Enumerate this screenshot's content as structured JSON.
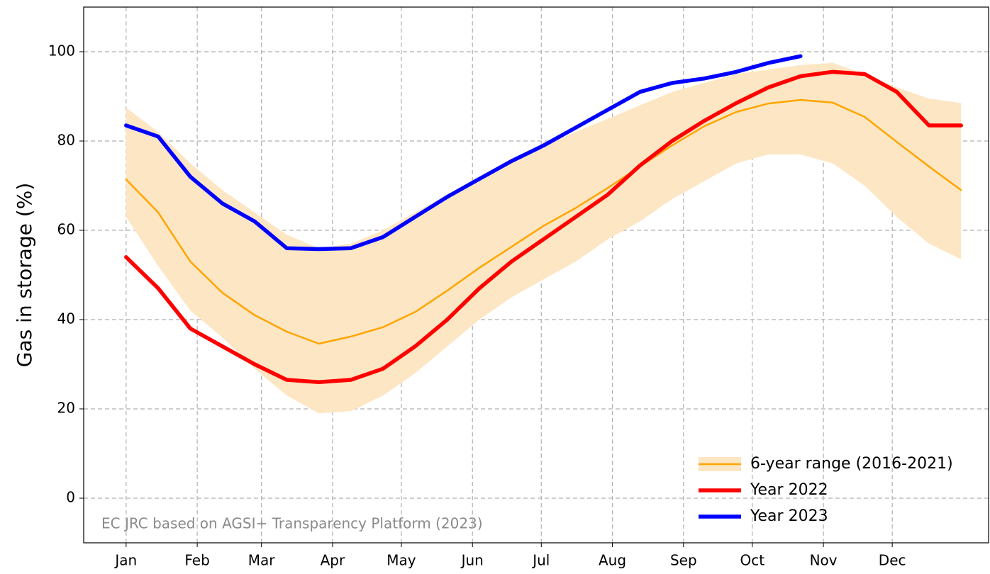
{
  "chart_data": {
    "type": "line",
    "y_label": "Gas in storage (%)",
    "annotation": "EC JRC based on AGSI+ Transparency Platform (2023)",
    "x": [
      0,
      14,
      28,
      42,
      56,
      70,
      84,
      98,
      112,
      126,
      140,
      154,
      168,
      182,
      196,
      210,
      224,
      238,
      252,
      266,
      280,
      294,
      308,
      322,
      336,
      350,
      364
    ],
    "xlim": [
      -18.5,
      376
    ],
    "xticks": [
      {
        "value": 0,
        "label": "Jan"
      },
      {
        "value": 31,
        "label": "Feb"
      },
      {
        "value": 59,
        "label": "Mar"
      },
      {
        "value": 90,
        "label": "Apr"
      },
      {
        "value": 120,
        "label": "May"
      },
      {
        "value": 151,
        "label": "Jun"
      },
      {
        "value": 181,
        "label": "Jul"
      },
      {
        "value": 212,
        "label": "Aug"
      },
      {
        "value": 243,
        "label": "Sep"
      },
      {
        "value": 273,
        "label": "Oct"
      },
      {
        "value": 304,
        "label": "Nov"
      },
      {
        "value": 334,
        "label": "Dec"
      }
    ],
    "ylim": [
      -10,
      110
    ],
    "yticks": [
      0,
      20,
      40,
      60,
      80,
      100
    ],
    "grid": true,
    "legend": "lower right",
    "series": [
      {
        "name": "6-year range (2016-2021)",
        "color": "#ffa500",
        "band_color": "#fde6c3",
        "values": [
          71.4,
          64,
          53,
          46,
          41,
          37.3,
          34.6,
          36.2,
          38.3,
          41.7,
          46.5,
          51.6,
          56.3,
          61,
          65,
          69.5,
          74.3,
          79,
          83.3,
          86.5,
          88.4,
          89.2,
          88.6,
          85.4,
          79.8,
          74.3,
          69
        ],
        "lower": [
          63,
          52,
          42,
          36,
          29,
          23,
          19,
          19.5,
          23,
          28,
          34,
          40,
          45,
          49,
          53,
          58,
          62,
          67,
          71,
          75,
          77,
          77,
          75,
          70,
          63,
          57,
          53.5
        ],
        "upper": [
          87.5,
          82,
          75,
          69,
          64,
          59,
          56,
          57,
          60,
          64,
          68,
          72,
          76,
          79,
          82,
          85,
          88,
          91,
          93,
          95,
          96,
          97,
          97.5,
          95,
          92,
          89.5,
          88.5
        ]
      },
      {
        "name": "Year 2022",
        "color": "#ff0000",
        "values": [
          54,
          47,
          38,
          34,
          30,
          26.5,
          26,
          26.5,
          29,
          34,
          40,
          47,
          53,
          58,
          63,
          68,
          74.5,
          80,
          84.5,
          88.5,
          92,
          94.5,
          95.5,
          95,
          91,
          83.5,
          83.5
        ]
      },
      {
        "name": "Year 2023",
        "color": "#0000ff",
        "values": [
          83.5,
          81,
          72,
          66,
          62,
          56,
          55.8,
          56,
          58.5,
          63,
          67.5,
          71.5,
          75.5,
          79,
          83,
          87,
          91,
          93,
          94,
          95.5,
          97.5,
          99,
          null,
          null,
          null,
          null,
          null
        ]
      }
    ]
  }
}
